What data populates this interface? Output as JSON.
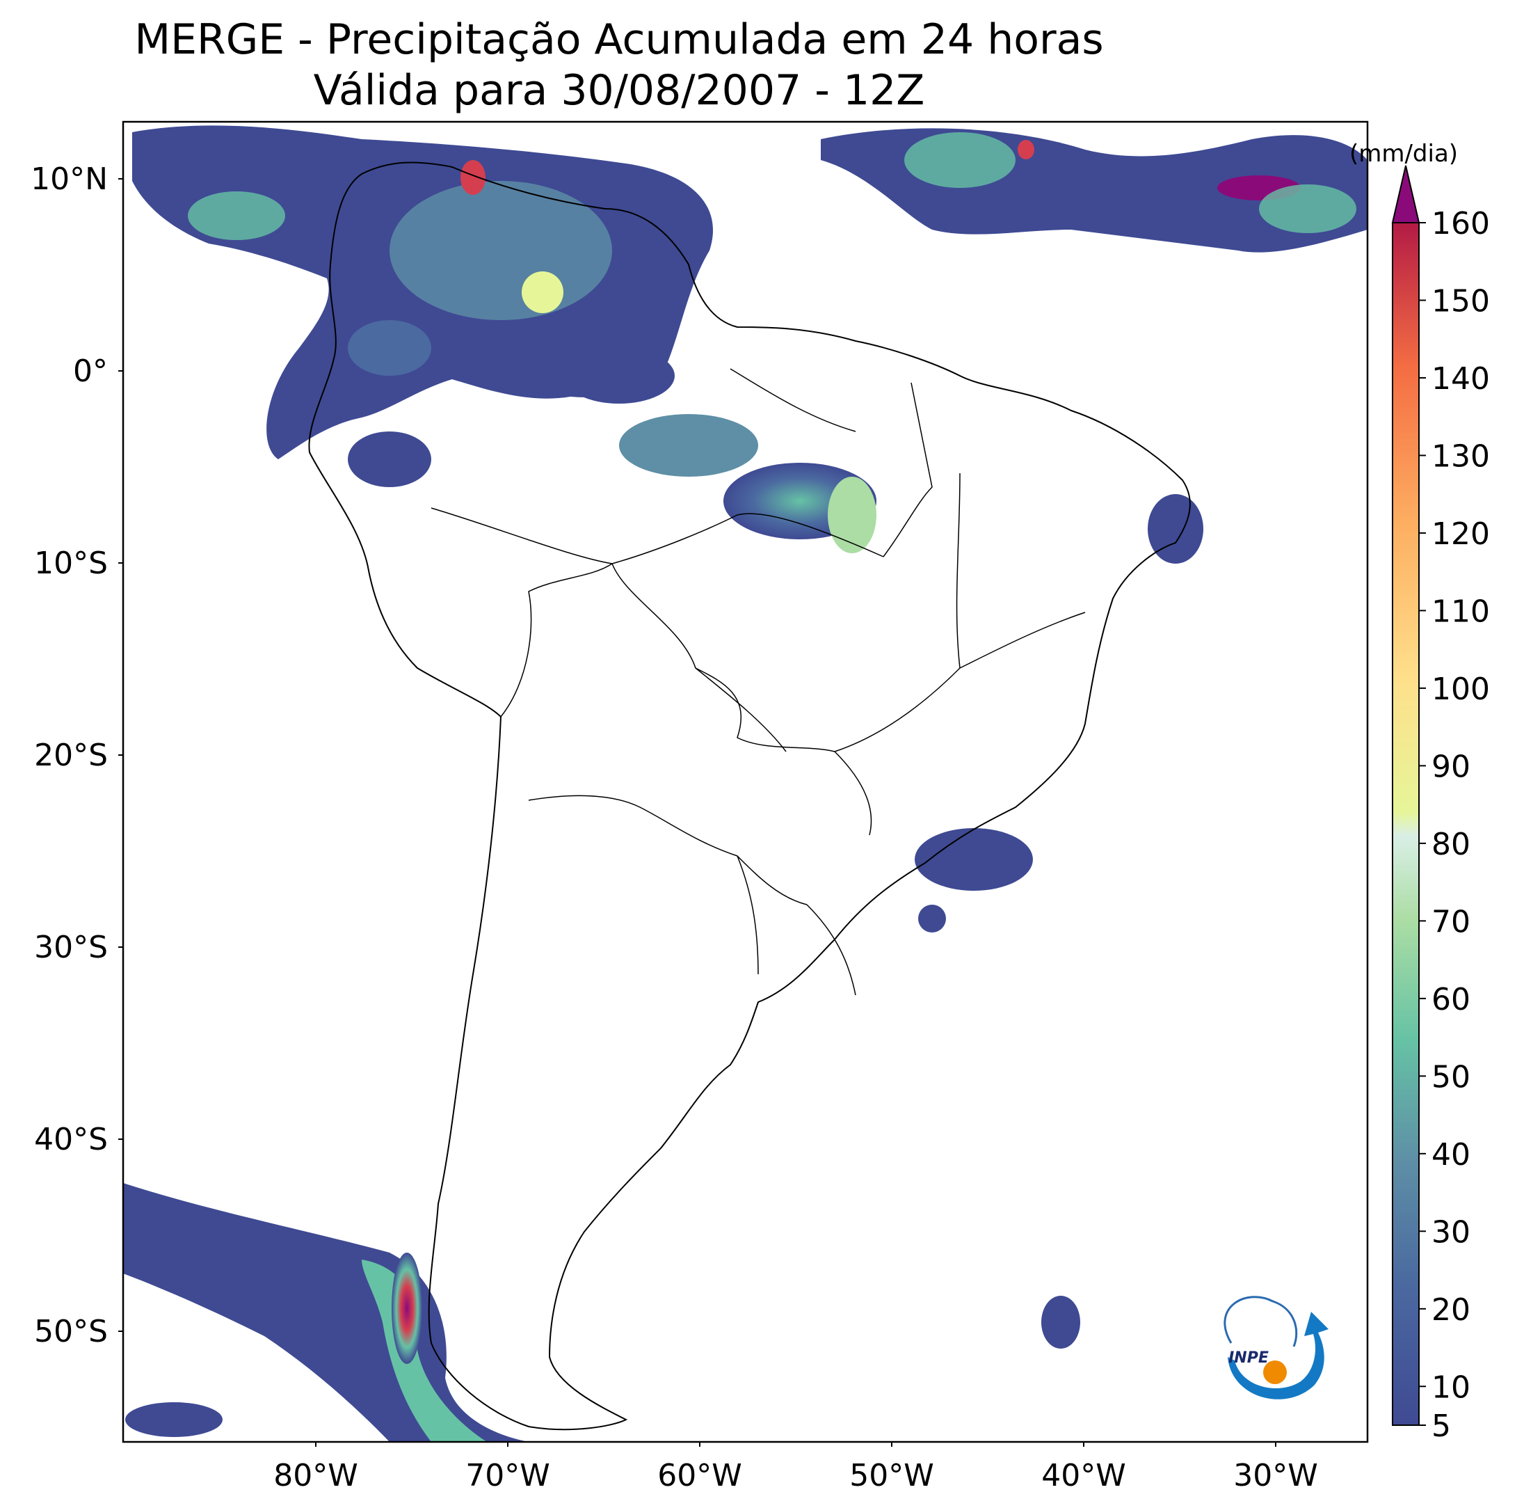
{
  "title": {
    "line1": "MERGE - Precipitação Acumulada em 24 horas",
    "line2": "Válida para 30/08/2007 - 12Z"
  },
  "axes": {
    "lat_labels": [
      "10°N",
      "0°",
      "10°S",
      "20°S",
      "30°S",
      "40°S",
      "50°S"
    ],
    "lon_labels": [
      "80°W",
      "70°W",
      "60°W",
      "50°W",
      "40°W",
      "30°W"
    ]
  },
  "colorbar": {
    "unit": "(mm/dia)",
    "ticks": [
      "5",
      "10",
      "20",
      "30",
      "40",
      "50",
      "60",
      "70",
      "80",
      "90",
      "100",
      "110",
      "120",
      "130",
      "140",
      "150",
      "160"
    ],
    "colors": {
      "low": "#3f4a93",
      "mid_low": "#5a7fa8",
      "mid": "#66c2a5",
      "mid_high": "#e6f598",
      "high": "#fdae61",
      "very_high": "#d53e4f",
      "extreme": "#8b0a7a"
    }
  },
  "logo": {
    "text": "INPE"
  }
}
